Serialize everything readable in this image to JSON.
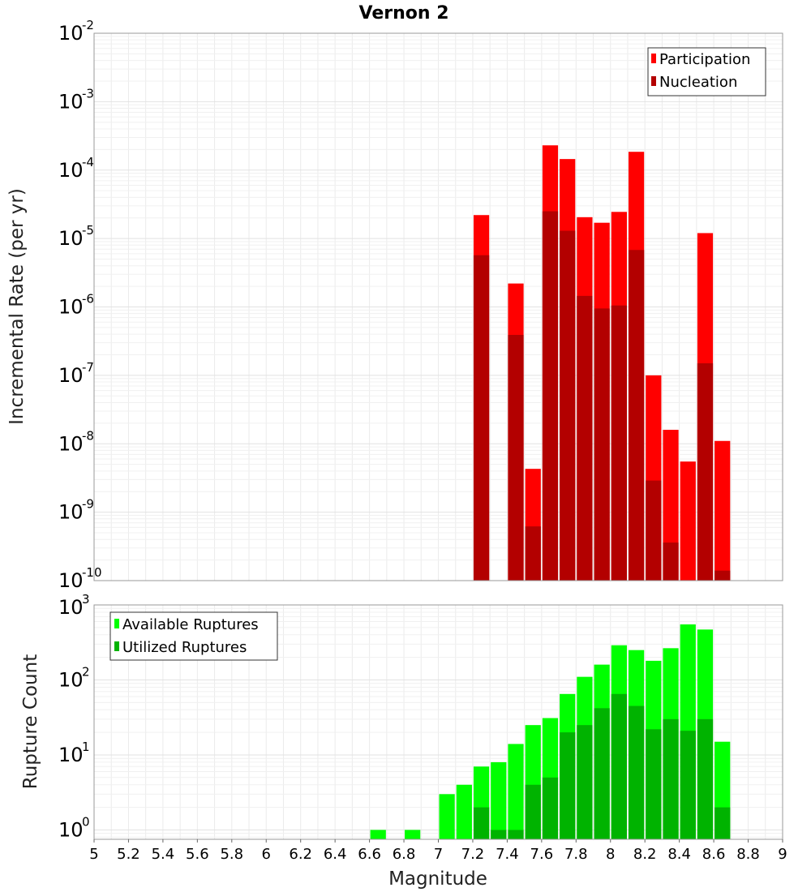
{
  "chart_data": [
    {
      "type": "bar",
      "title": "Vernon 2",
      "xlabel": "Magnitude",
      "ylabel": "Incremental Rate (per yr)",
      "yscale": "log",
      "xlim": [
        5,
        9
      ],
      "ylim": [
        1e-10,
        0.01
      ],
      "grid": true,
      "legend_position": "top-right",
      "x_ticks": [
        "5",
        "5.2",
        "5.4",
        "5.6",
        "5.8",
        "6",
        "6.2",
        "6.4",
        "6.6",
        "6.8",
        "7",
        "7.2",
        "7.4",
        "7.6",
        "7.8",
        "8",
        "8.2",
        "8.4",
        "8.6",
        "8.8",
        "9"
      ],
      "y_tick_base": "10",
      "y_tick_exponents": [
        "-10",
        "-9",
        "-8",
        "-7",
        "-6",
        "-5",
        "-4",
        "-3",
        "-2"
      ],
      "x": [
        7.25,
        7.45,
        7.55,
        7.65,
        7.75,
        7.85,
        7.95,
        8.05,
        8.15,
        8.25,
        8.35,
        8.45,
        8.55,
        8.65
      ],
      "series": [
        {
          "name": "Participation",
          "color": "#ff0000",
          "values": [
            2.2e-05,
            2.2e-06,
            4.3e-09,
            0.00023,
            0.000145,
            2.05e-05,
            1.7e-05,
            2.45e-05,
            0.000185,
            1e-07,
            1.6e-08,
            5.5e-09,
            1.2e-05,
            1.1e-08
          ]
        },
        {
          "name": "Nucleation",
          "color": "#b30000",
          "values": [
            5.7e-06,
            3.9e-07,
            6.2e-10,
            2.5e-05,
            1.3e-05,
            1.45e-06,
            9.5e-07,
            1.05e-06,
            6.8e-06,
            2.9e-09,
            3.6e-10,
            null,
            1.5e-07,
            1.4e-10
          ]
        }
      ]
    },
    {
      "type": "bar",
      "xlabel": "Magnitude",
      "ylabel": "Rupture Count",
      "yscale": "log",
      "xlim": [
        5,
        9
      ],
      "ylim": [
        0.75,
        1000
      ],
      "grid": true,
      "legend_position": "top-left",
      "y_tick_base": "10",
      "y_tick_exponents": [
        "0",
        "1",
        "2",
        "3"
      ],
      "x": [
        6.65,
        6.85,
        7.05,
        7.15,
        7.25,
        7.35,
        7.45,
        7.55,
        7.65,
        7.75,
        7.85,
        7.95,
        8.05,
        8.15,
        8.25,
        8.35,
        8.45,
        8.55,
        8.65
      ],
      "series": [
        {
          "name": "Available Ruptures",
          "color": "#00ff00",
          "values": [
            1,
            1,
            3,
            4,
            7,
            8,
            14,
            25,
            31,
            65,
            110,
            160,
            290,
            250,
            180,
            265,
            550,
            470,
            15
          ]
        },
        {
          "name": "Utilized Ruptures",
          "color": "#00b300",
          "values": [
            null,
            null,
            null,
            null,
            2,
            1,
            1,
            4,
            5,
            20,
            25,
            42,
            65,
            45,
            22,
            30,
            21,
            30,
            2
          ]
        }
      ]
    }
  ]
}
